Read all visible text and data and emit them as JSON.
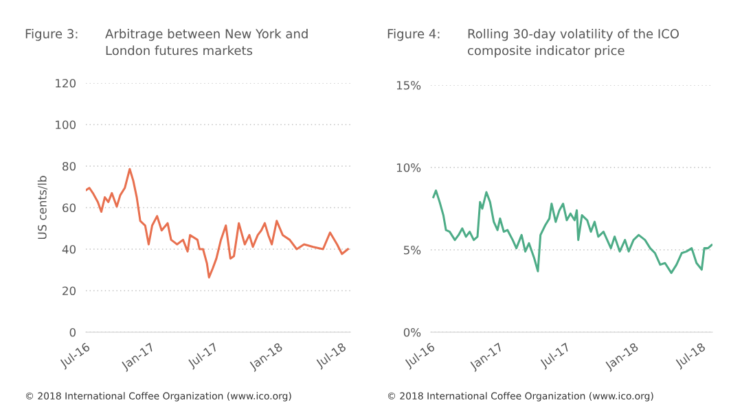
{
  "chart_data": [
    {
      "type": "line",
      "title": "Figure 3:",
      "subtitle": "Arbitrage between New York and\nLondon futures markets",
      "ylabel": "US cents/lb",
      "annotations": [
        "© 2018 International Coffee Organization (www.ico.org)"
      ],
      "x": [
        "2016-07-01",
        "2016-07-11",
        "2016-07-21",
        "2016-08-04",
        "2016-08-14",
        "2016-08-24",
        "2016-09-03",
        "2016-09-13",
        "2016-09-27",
        "2016-10-07",
        "2016-10-20",
        "2016-11-03",
        "2016-11-13",
        "2016-11-23",
        "2016-12-03",
        "2016-12-17",
        "2016-12-27",
        "2017-01-06",
        "2017-01-20",
        "2017-02-02",
        "2017-02-19",
        "2017-03-01",
        "2017-03-18",
        "2017-04-04",
        "2017-04-17",
        "2017-04-24",
        "2017-05-15",
        "2017-05-21",
        "2017-05-31",
        "2017-06-11",
        "2017-06-17",
        "2017-06-28",
        "2017-07-08",
        "2017-07-21",
        "2017-08-04",
        "2017-08-17",
        "2017-08-27",
        "2017-09-10",
        "2017-09-27",
        "2017-10-10",
        "2017-10-20",
        "2017-11-03",
        "2017-11-13",
        "2017-11-23",
        "2017-12-03",
        "2017-12-13",
        "2017-12-27",
        "2018-01-13",
        "2018-02-02",
        "2018-02-22",
        "2018-03-15",
        "2018-04-10",
        "2018-05-08",
        "2018-05-28",
        "2018-06-17",
        "2018-07-01",
        "2018-07-18"
      ],
      "series": [
        {
          "color": "#e8704f",
          "values": [
            68.4,
            69.5,
            67,
            62.7,
            58,
            65,
            62.7,
            67,
            60.5,
            66,
            69.5,
            78.6,
            73,
            65,
            53.6,
            51.4,
            42.3,
            51.4,
            55.9,
            49,
            52.5,
            44.5,
            42.3,
            44.5,
            38.9,
            46.8,
            44.5,
            40,
            40,
            33.2,
            26.4,
            30.9,
            35.5,
            44.5,
            51.4,
            35.5,
            36.6,
            52.5,
            42.3,
            46.8,
            41.1,
            46.8,
            49,
            52.5,
            46.8,
            42.3,
            53.6,
            46.8,
            44.5,
            40,
            42.3,
            41.1,
            40,
            48,
            42.3,
            37.7,
            40
          ]
        }
      ],
      "xlim": [
        "2016-07-01",
        "2018-07-25"
      ],
      "xticks": [
        {
          "value": "2016-07-01",
          "label": "Jul-16"
        },
        {
          "value": "2017-01-01",
          "label": "Jan-17"
        },
        {
          "value": "2017-07-01",
          "label": "Jul-17"
        },
        {
          "value": "2018-01-01",
          "label": "Jan-18"
        },
        {
          "value": "2018-07-01",
          "label": "Jul-18"
        }
      ],
      "ylim": [
        0,
        120
      ],
      "yticks": [
        0,
        20,
        40,
        60,
        80,
        100,
        120
      ],
      "grid": "y",
      "legend": false
    },
    {
      "type": "line",
      "title": "Figure 4:",
      "subtitle": "Rolling 30-day volatility of the ICO\ncomposite indicator price",
      "annotations": [
        "© 2018 International Coffee Organization (www.ico.org)"
      ],
      "x": [
        "2016-07-08",
        "2016-07-15",
        "2016-07-25",
        "2016-08-04",
        "2016-08-11",
        "2016-08-21",
        "2016-09-04",
        "2016-09-14",
        "2016-09-24",
        "2016-10-04",
        "2016-10-14",
        "2016-10-25",
        "2016-11-04",
        "2016-11-11",
        "2016-11-17",
        "2016-11-28",
        "2016-12-08",
        "2016-12-18",
        "2016-12-28",
        "2017-01-04",
        "2017-01-14",
        "2017-01-24",
        "2017-02-07",
        "2017-02-17",
        "2017-03-03",
        "2017-03-13",
        "2017-03-23",
        "2017-04-06",
        "2017-04-16",
        "2017-04-23",
        "2017-05-06",
        "2017-05-17",
        "2017-05-23",
        "2017-06-03",
        "2017-06-13",
        "2017-06-23",
        "2017-07-03",
        "2017-07-13",
        "2017-07-24",
        "2017-07-30",
        "2017-08-03",
        "2017-08-13",
        "2017-08-27",
        "2017-09-06",
        "2017-09-16",
        "2017-09-26",
        "2017-10-10",
        "2017-10-20",
        "2017-10-30",
        "2017-11-09",
        "2017-11-23",
        "2017-12-07",
        "2017-12-17",
        "2017-12-30",
        "2018-01-13",
        "2018-01-30",
        "2018-02-13",
        "2018-02-26",
        "2018-03-12",
        "2018-03-25",
        "2018-04-11",
        "2018-04-25",
        "2018-05-09",
        "2018-05-22",
        "2018-06-05",
        "2018-06-18",
        "2018-07-02",
        "2018-07-09",
        "2018-07-19",
        "2018-07-29"
      ],
      "series": [
        {
          "color": "#4dac87",
          "values": [
            8.2,
            8.6,
            7.9,
            7.1,
            6.2,
            6.1,
            5.6,
            5.9,
            6.3,
            5.8,
            6.1,
            5.6,
            5.8,
            7.9,
            7.5,
            8.5,
            7.9,
            6.7,
            6.2,
            6.9,
            6.1,
            6.2,
            5.6,
            5.1,
            5.9,
            4.9,
            5.4,
            4.5,
            3.7,
            5.9,
            6.5,
            6.9,
            7.8,
            6.7,
            7.4,
            7.8,
            6.8,
            7.2,
            6.8,
            7.4,
            5.6,
            7.1,
            6.8,
            6.1,
            6.7,
            5.8,
            6.1,
            5.6,
            5.1,
            5.8,
            4.9,
            5.6,
            4.9,
            5.6,
            5.9,
            5.6,
            5.1,
            4.8,
            4.1,
            4.2,
            3.6,
            4.1,
            4.8,
            4.9,
            5.1,
            4.2,
            3.8,
            5.1,
            5.1,
            5.3
          ]
        }
      ],
      "xlim": [
        "2016-07-01",
        "2018-07-31"
      ],
      "xticks": [
        {
          "value": "2016-07-01",
          "label": "Jul-16"
        },
        {
          "value": "2017-01-01",
          "label": "Jan-17"
        },
        {
          "value": "2017-07-01",
          "label": "Jul-17"
        },
        {
          "value": "2018-01-01",
          "label": "Jan-18"
        },
        {
          "value": "2018-07-01",
          "label": "Jul-18"
        }
      ],
      "ylim": [
        0,
        15
      ],
      "yticks": [
        {
          "value": 0,
          "label": "0%"
        },
        {
          "value": 5,
          "label": "5%"
        },
        {
          "value": 10,
          "label": "10%"
        },
        {
          "value": 15,
          "label": "15%"
        }
      ],
      "grid": "y",
      "legend": false
    }
  ]
}
